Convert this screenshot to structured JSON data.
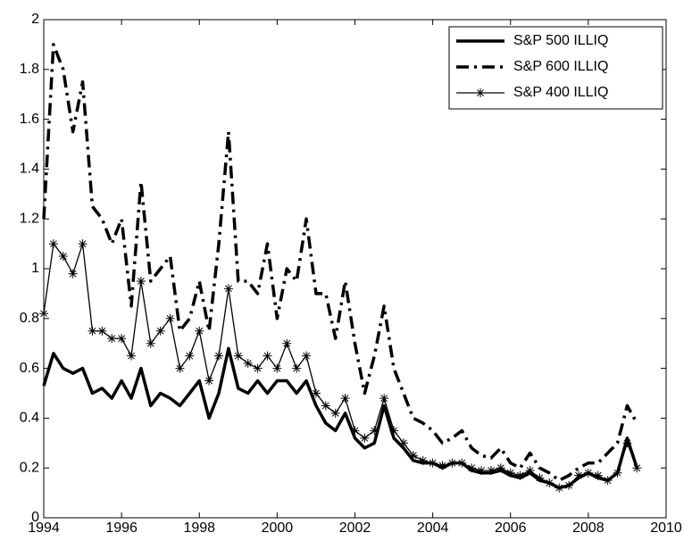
{
  "chart_data": {
    "type": "line",
    "x": [
      1994,
      1994.25,
      1994.5,
      1994.75,
      1995,
      1995.25,
      1995.5,
      1995.75,
      1996,
      1996.25,
      1996.5,
      1996.75,
      1997,
      1997.25,
      1997.5,
      1997.75,
      1998,
      1998.25,
      1998.5,
      1998.75,
      1999,
      1999.25,
      1999.5,
      1999.75,
      2000,
      2000.25,
      2000.5,
      2000.75,
      2001,
      2001.25,
      2001.5,
      2001.75,
      2002,
      2002.25,
      2002.5,
      2002.75,
      2003,
      2003.25,
      2003.5,
      2003.75,
      2004,
      2004.25,
      2004.5,
      2004.75,
      2005,
      2005.25,
      2005.5,
      2005.75,
      2006,
      2006.25,
      2006.5,
      2006.75,
      2007,
      2007.25,
      2007.5,
      2007.75,
      2008,
      2008.25,
      2008.5,
      2008.75,
      2009,
      2009.25
    ],
    "series": [
      {
        "name": "S&P 500 ILLIQ",
        "color": "#000000",
        "style": "solid",
        "width": 3.5,
        "values": [
          0.53,
          0.66,
          0.6,
          0.58,
          0.6,
          0.5,
          0.52,
          0.48,
          0.55,
          0.48,
          0.6,
          0.45,
          0.5,
          0.48,
          0.45,
          0.5,
          0.55,
          0.4,
          0.5,
          0.68,
          0.52,
          0.5,
          0.55,
          0.5,
          0.55,
          0.55,
          0.5,
          0.55,
          0.45,
          0.38,
          0.35,
          0.42,
          0.32,
          0.28,
          0.3,
          0.45,
          0.32,
          0.28,
          0.23,
          0.22,
          0.22,
          0.2,
          0.22,
          0.22,
          0.19,
          0.18,
          0.18,
          0.19,
          0.17,
          0.16,
          0.18,
          0.15,
          0.14,
          0.12,
          0.13,
          0.16,
          0.18,
          0.16,
          0.15,
          0.18,
          0.32,
          0.2
        ]
      },
      {
        "name": "S&P 600 ILLIQ",
        "color": "#000000",
        "style": "dashdot",
        "width": 3.5,
        "values": [
          1.2,
          1.9,
          1.8,
          1.55,
          1.75,
          1.25,
          1.2,
          1.1,
          1.2,
          0.85,
          1.35,
          0.95,
          1.0,
          1.05,
          0.75,
          0.8,
          0.95,
          0.75,
          1.1,
          1.55,
          0.95,
          0.95,
          0.9,
          1.1,
          0.8,
          1.0,
          0.95,
          1.2,
          0.9,
          0.9,
          0.72,
          0.95,
          0.7,
          0.5,
          0.65,
          0.85,
          0.6,
          0.5,
          0.4,
          0.38,
          0.35,
          0.3,
          0.32,
          0.35,
          0.28,
          0.25,
          0.24,
          0.28,
          0.22,
          0.2,
          0.26,
          0.2,
          0.18,
          0.15,
          0.17,
          0.2,
          0.22,
          0.22,
          0.26,
          0.3,
          0.45,
          0.38
        ]
      },
      {
        "name": "S&P 400 ILLIQ",
        "color": "#000000",
        "style": "solid",
        "width": 1.3,
        "marker": "star",
        "values": [
          0.82,
          1.1,
          1.05,
          0.98,
          1.1,
          0.75,
          0.75,
          0.72,
          0.72,
          0.65,
          0.95,
          0.7,
          0.75,
          0.8,
          0.6,
          0.65,
          0.75,
          0.55,
          0.65,
          0.92,
          0.65,
          0.62,
          0.6,
          0.65,
          0.6,
          0.7,
          0.6,
          0.65,
          0.5,
          0.45,
          0.42,
          0.48,
          0.35,
          0.32,
          0.35,
          0.48,
          0.35,
          0.3,
          0.25,
          0.23,
          0.22,
          0.21,
          0.22,
          0.22,
          0.2,
          0.19,
          0.19,
          0.2,
          0.18,
          0.17,
          0.19,
          0.16,
          0.14,
          0.12,
          0.13,
          0.17,
          0.18,
          0.17,
          0.15,
          0.18,
          0.3,
          0.2
        ]
      }
    ],
    "xlim": [
      1994,
      2010
    ],
    "xticks": [
      1994,
      1996,
      1998,
      2000,
      2002,
      2004,
      2006,
      2008,
      2010
    ],
    "ylim": [
      0,
      2
    ],
    "yticks": [
      0,
      0.2,
      0.4,
      0.6,
      0.8,
      1,
      1.2,
      1.4,
      1.6,
      1.8,
      2
    ],
    "grid": false,
    "legend": "upper-right"
  }
}
